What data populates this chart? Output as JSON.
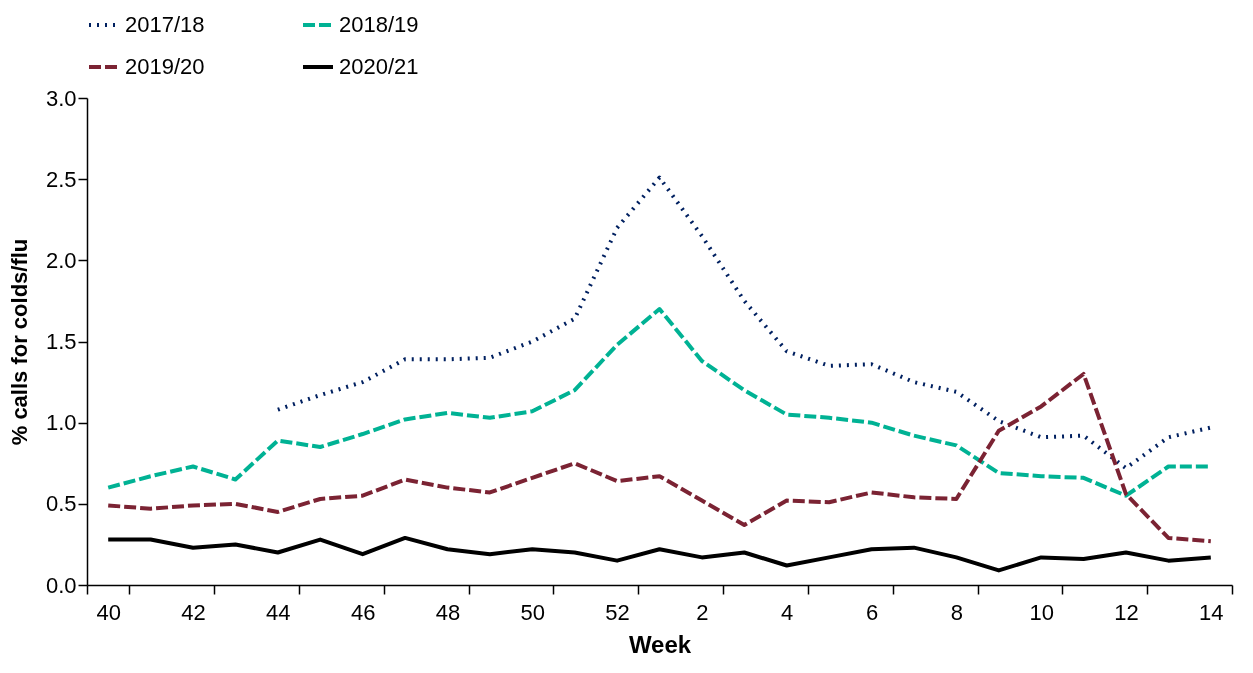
{
  "chart_data": {
    "type": "line",
    "xlabel": "Week",
    "ylabel": "% calls for colds/flu",
    "categories": [
      "40",
      null,
      "42",
      null,
      "44",
      null,
      "46",
      null,
      "48",
      null,
      "50",
      null,
      "52",
      null,
      "2",
      null,
      "4",
      null,
      "6",
      null,
      "8",
      null,
      "10",
      null,
      "12",
      null,
      "14"
    ],
    "ylim": [
      0,
      3
    ],
    "yticks": [
      {
        "value": 0,
        "label": "0.0"
      },
      0.5,
      {
        "value": 1,
        "label": "1.0"
      },
      1.5,
      {
        "value": 2,
        "label": "2.0"
      },
      2.5,
      {
        "value": 3,
        "label": "3.0"
      }
    ],
    "grid": false,
    "legend": "top",
    "series": [
      {
        "name": "2017/18",
        "color": "#002060",
        "line_style": "dotted",
        "values": [
          null,
          null,
          null,
          null,
          1.08,
          1.17,
          1.25,
          1.39,
          1.39,
          1.4,
          1.5,
          1.64,
          2.2,
          2.51,
          2.15,
          1.75,
          1.44,
          1.35,
          1.36,
          1.25,
          1.19,
          1.01,
          0.91,
          0.92,
          0.72,
          0.91,
          0.97
        ]
      },
      {
        "name": "2018/19",
        "color": "#00b294",
        "line_style": "dashed",
        "values": [
          0.6,
          0.67,
          0.73,
          0.65,
          0.89,
          0.85,
          0.93,
          1.02,
          1.06,
          1.03,
          1.07,
          1.2,
          1.48,
          1.7,
          1.38,
          1.2,
          1.05,
          1.03,
          1.0,
          0.92,
          0.86,
          0.69,
          0.67,
          0.66,
          0.55,
          0.73,
          0.73
        ]
      },
      {
        "name": "2019/20",
        "color": "#7b2333",
        "line_style": "dashed",
        "values": [
          0.49,
          0.47,
          0.49,
          0.5,
          0.45,
          0.53,
          0.55,
          0.65,
          0.6,
          0.57,
          0.66,
          0.75,
          0.64,
          0.67,
          0.52,
          0.37,
          0.52,
          0.51,
          0.57,
          0.54,
          0.53,
          0.95,
          1.1,
          1.3,
          0.56,
          0.29,
          0.27
        ]
      },
      {
        "name": "2020/21",
        "color": "#000000",
        "line_style": "solid",
        "values": [
          0.28,
          0.28,
          0.23,
          0.25,
          0.2,
          0.28,
          0.19,
          0.29,
          0.22,
          0.19,
          0.22,
          0.2,
          0.15,
          0.22,
          0.17,
          0.2,
          0.12,
          0.17,
          0.22,
          0.23,
          0.17,
          0.09,
          0.17,
          0.16,
          0.2,
          0.15,
          0.17
        ]
      }
    ]
  }
}
